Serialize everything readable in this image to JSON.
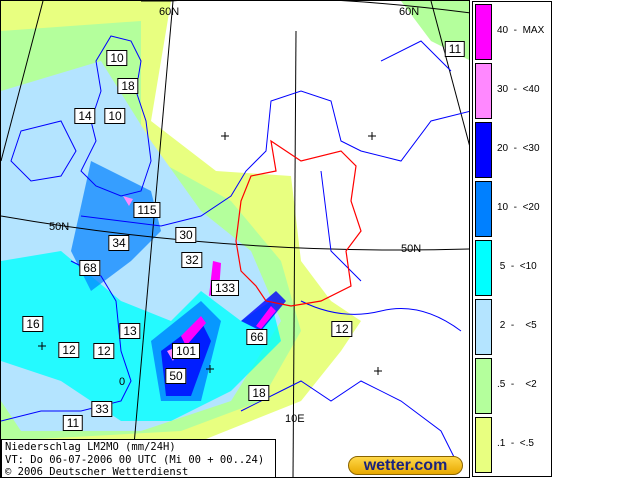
{
  "map": {
    "grid_labels": [
      "60N",
      "60N",
      "50N",
      "50N",
      "10E",
      "0"
    ],
    "values": [
      "10",
      "18",
      "14",
      "10",
      "115",
      "34",
      "30",
      "32",
      "68",
      "133",
      "16",
      "13",
      "12",
      "12",
      "101",
      "66",
      "12",
      "50",
      "18",
      "33",
      "11",
      "11"
    ],
    "colors": {
      "coast": "#0000ff",
      "border": "#ff0000"
    }
  },
  "caption": {
    "line1": "Niederschlag LM2MO (mm/24H)",
    "line2": "VT: Do 06-07-2006 00 UTC (Mi 00 + 00..24)",
    "line3": "© 2006 Deutscher Wetterdienst"
  },
  "logo": "wetter.com",
  "legend": [
    {
      "label": "40  -  MAX",
      "color": "#ff00ff"
    },
    {
      "label": "30  -  <40",
      "color": "#ff88ff"
    },
    {
      "label": "20  -  <30",
      "color": "#0000ff"
    },
    {
      "label": "10  -  <20",
      "color": "#0080ff"
    },
    {
      "label": " 5  -  <10",
      "color": "#00ffff"
    },
    {
      "label": " 2  -    <5",
      "color": "#b4e4ff"
    },
    {
      "label": ".5  -    <2",
      "color": "#b4ff9c"
    },
    {
      "label": ".1  -  <.5",
      "color": "#e8ff80"
    }
  ]
}
